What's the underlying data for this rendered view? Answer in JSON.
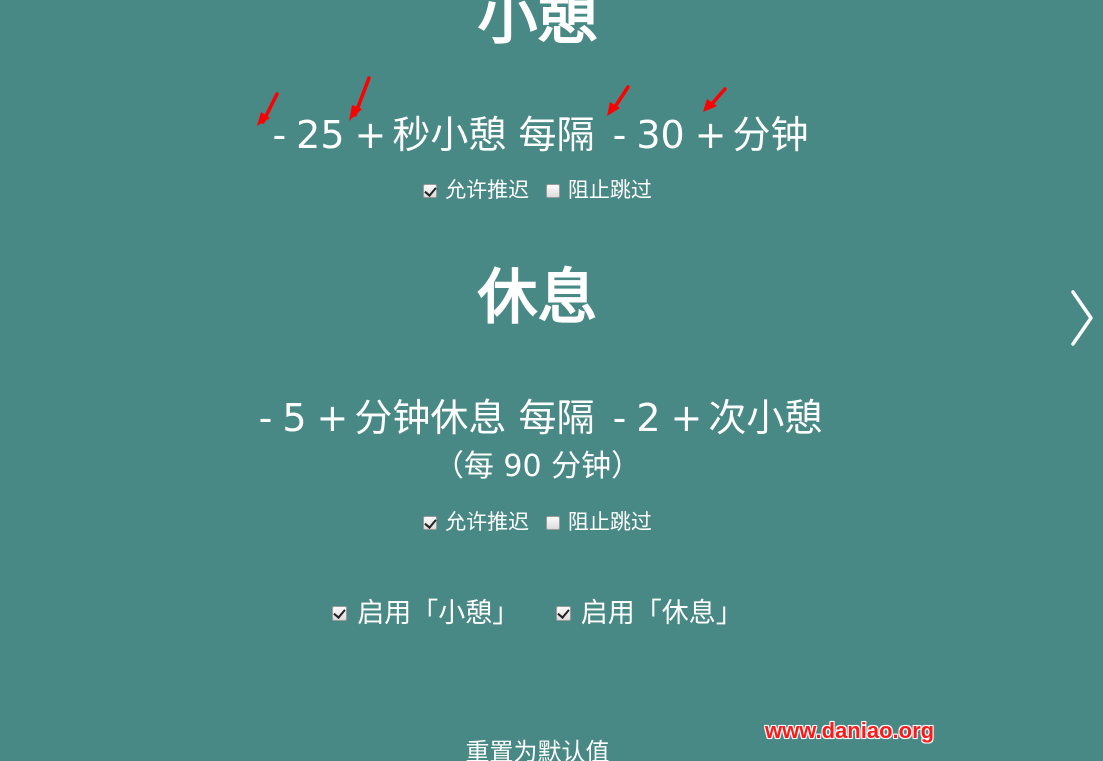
{
  "microbreak": {
    "title": "小憩",
    "minus": "-",
    "plus": "+",
    "duration": "25",
    "duration_suffix": "秒小憩",
    "every_label": "每隔",
    "interval": "30",
    "interval_suffix": "分钟",
    "allow_postpone_label": "允许推迟",
    "allow_postpone_checked": true,
    "prevent_skip_label": "阻止跳过",
    "prevent_skip_checked": false
  },
  "break": {
    "title": "休息",
    "minus": "-",
    "plus": "+",
    "duration": "5",
    "duration_suffix": "分钟休息",
    "every_label": "每隔",
    "interval": "2",
    "interval_suffix": "次小憩",
    "summary": "（每 90 分钟）",
    "allow_postpone_label": "允许推迟",
    "allow_postpone_checked": true,
    "prevent_skip_label": "阻止跳过",
    "prevent_skip_checked": false
  },
  "enable": {
    "microbreak_label": "启用「小憩」",
    "microbreak_checked": true,
    "break_label": "启用「休息」",
    "break_checked": true
  },
  "reset_label": "重置为默认值",
  "watermark": "www.daniao.org",
  "icons": {
    "next": "chevron-right-icon",
    "annotation": "red-arrow-icon"
  },
  "colors": {
    "background": "#488885",
    "text": "#ffffff",
    "annotation": "#ff0000"
  }
}
